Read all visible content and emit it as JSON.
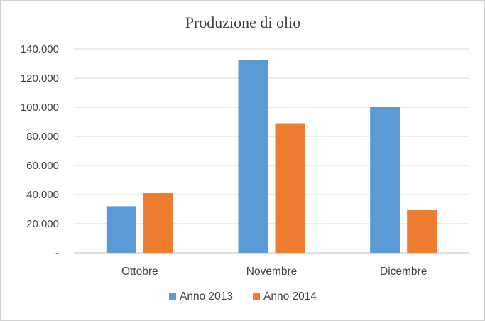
{
  "chart_data": {
    "type": "bar",
    "title": "Produzione di olio",
    "categories": [
      "Ottobre",
      "Novembre",
      "Dicembre"
    ],
    "series": [
      {
        "name": "Anno 2013",
        "color": "#5b9bd5",
        "values": [
          32000,
          132500,
          100000
        ]
      },
      {
        "name": "Anno 2014",
        "color": "#ed7d31",
        "values": [
          41000,
          89000,
          29500
        ]
      }
    ],
    "ylim": [
      0,
      140000
    ],
    "y_ticks": [
      {
        "value": 0,
        "label": "-"
      },
      {
        "value": 20000,
        "label": "20.000"
      },
      {
        "value": 40000,
        "label": "40.000"
      },
      {
        "value": 60000,
        "label": "60.000"
      },
      {
        "value": 80000,
        "label": "80.000"
      },
      {
        "value": 100000,
        "label": "100.000"
      },
      {
        "value": 120000,
        "label": "120.000"
      },
      {
        "value": 140000,
        "label": "140.000"
      }
    ],
    "grid": true,
    "legend_position": "bottom",
    "xlabel": "",
    "ylabel": ""
  }
}
